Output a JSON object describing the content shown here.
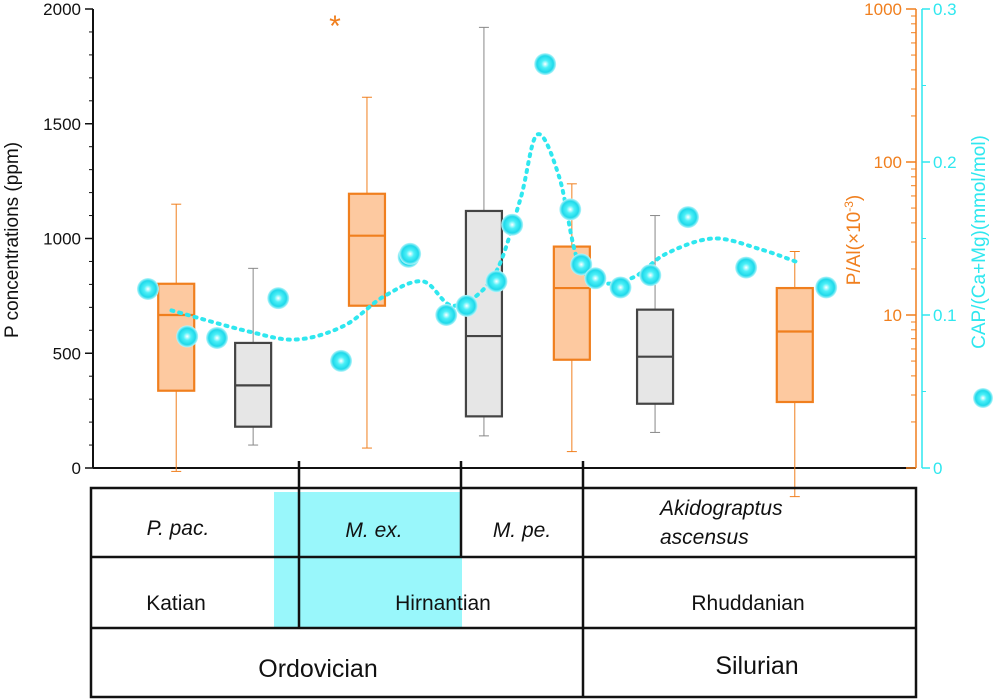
{
  "chart_data": {
    "type": "box",
    "left_axis": {
      "label": "P concentrations (ppm)",
      "ticks": [
        "0",
        "500",
        "1000",
        "1500",
        "2000"
      ],
      "range": [
        0,
        2000
      ]
    },
    "right_axis_1": {
      "label": "P/Al(×10-3)",
      "label_main": "P/Al(×10",
      "label_sup": "-3",
      "label_tail": ")",
      "ticks": [
        "10",
        "100",
        "1000"
      ],
      "scale": "log",
      "range": [
        1,
        1000
      ],
      "color": "#f07f1e"
    },
    "right_axis_2": {
      "label": "CAP/(Ca+Mg)(mmol/mol)",
      "ticks": [
        "0",
        "0.1",
        "0.2",
        "0.3"
      ],
      "range": [
        0,
        0.3
      ],
      "color": "#2fe7ef"
    },
    "colors": {
      "orange": "#f07f1e",
      "orange_fill": "#fdc9a0",
      "gray_fill": "#e6e6e6",
      "gray_stroke": "#444444",
      "cyan": "#2fe7ef",
      "highlight": "#99f7fb"
    },
    "boxes": [
      {
        "x": 0.53,
        "kind": "P/Al",
        "min": 0.95,
        "q1": 3.2,
        "median": 10,
        "q3": 16,
        "max": 53
      },
      {
        "x": 1.02,
        "kind": "P conc",
        "min": 100,
        "q1": 180,
        "median": 360,
        "q3": 545,
        "max": 870
      },
      {
        "x": 1.745,
        "kind": "P/Al",
        "min": 1.35,
        "q1": 11.5,
        "median": 33,
        "q3": 62,
        "max": 265,
        "outlier": 870
      },
      {
        "x": 2.49,
        "kind": "P conc",
        "min": 140,
        "q1": 225,
        "median": 575,
        "q3": 1120,
        "max": 1920
      },
      {
        "x": 3.05,
        "kind": "P/Al",
        "min": 1.28,
        "q1": 5.1,
        "median": 15,
        "q3": 28,
        "max": 72
      },
      {
        "x": 3.58,
        "kind": "P conc",
        "min": 155,
        "q1": 280,
        "median": 485,
        "q3": 690,
        "max": 1100
      },
      {
        "x": 4.47,
        "kind": "P/Al",
        "min": 0.65,
        "q1": 2.7,
        "median": 7.8,
        "q3": 15,
        "max": 26
      }
    ],
    "cap_points": [
      {
        "x": 0.35,
        "y": 0.117
      },
      {
        "x": 0.6,
        "y": 0.086
      },
      {
        "x": 0.79,
        "y": 0.085
      },
      {
        "x": 1.18,
        "y": 0.111
      },
      {
        "x": 1.58,
        "y": 0.07
      },
      {
        "x": 2.01,
        "y": 0.138
      },
      {
        "x": 2.02,
        "y": 0.14
      },
      {
        "x": 2.25,
        "y": 0.1
      },
      {
        "x": 2.38,
        "y": 0.106
      },
      {
        "x": 2.57,
        "y": 0.122
      },
      {
        "x": 2.67,
        "y": 0.159
      },
      {
        "x": 2.88,
        "y": 0.264
      },
      {
        "x": 3.04,
        "y": 0.169
      },
      {
        "x": 3.11,
        "y": 0.133
      },
      {
        "x": 3.2,
        "y": 0.124
      },
      {
        "x": 3.36,
        "y": 0.118
      },
      {
        "x": 3.55,
        "y": 0.126
      },
      {
        "x": 3.79,
        "y": 0.164
      },
      {
        "x": 4.16,
        "y": 0.131
      },
      {
        "x": 4.67,
        "y": 0.118
      }
    ],
    "trend": [
      {
        "x": 0.5,
        "y": 0.103
      },
      {
        "x": 1.0,
        "y": 0.089
      },
      {
        "x": 1.3,
        "y": 0.084
      },
      {
        "x": 1.6,
        "y": 0.093
      },
      {
        "x": 1.85,
        "y": 0.112
      },
      {
        "x": 2.1,
        "y": 0.122
      },
      {
        "x": 2.3,
        "y": 0.106
      },
      {
        "x": 2.55,
        "y": 0.125
      },
      {
        "x": 2.72,
        "y": 0.175
      },
      {
        "x": 2.83,
        "y": 0.218
      },
      {
        "x": 2.97,
        "y": 0.19
      },
      {
        "x": 3.09,
        "y": 0.135
      },
      {
        "x": 3.25,
        "y": 0.121
      },
      {
        "x": 3.45,
        "y": 0.125
      },
      {
        "x": 3.65,
        "y": 0.14
      },
      {
        "x": 3.95,
        "y": 0.15
      },
      {
        "x": 4.25,
        "y": 0.143
      },
      {
        "x": 4.5,
        "y": 0.134
      }
    ],
    "asterisk": "*"
  },
  "strat_table": {
    "rows": [
      [
        "P. pac.",
        "M. ex.",
        "M. pe.",
        "Akidograptus ascensus"
      ],
      [
        "Katian",
        "Hirnantian",
        "Rhuddanian"
      ],
      [
        "Ordovician",
        "Silurian"
      ]
    ],
    "zone_1": "P. pac.",
    "zone_2": "M. ex.",
    "zone_3": "M. pe.",
    "zone_4_line1": "Akidograptus",
    "zone_4_line2": "ascensus",
    "stage_1": "Katian",
    "stage_2": "Hirnantian",
    "stage_3": "Rhuddanian",
    "system_1": "Ordovician",
    "system_2": "Silurian"
  }
}
